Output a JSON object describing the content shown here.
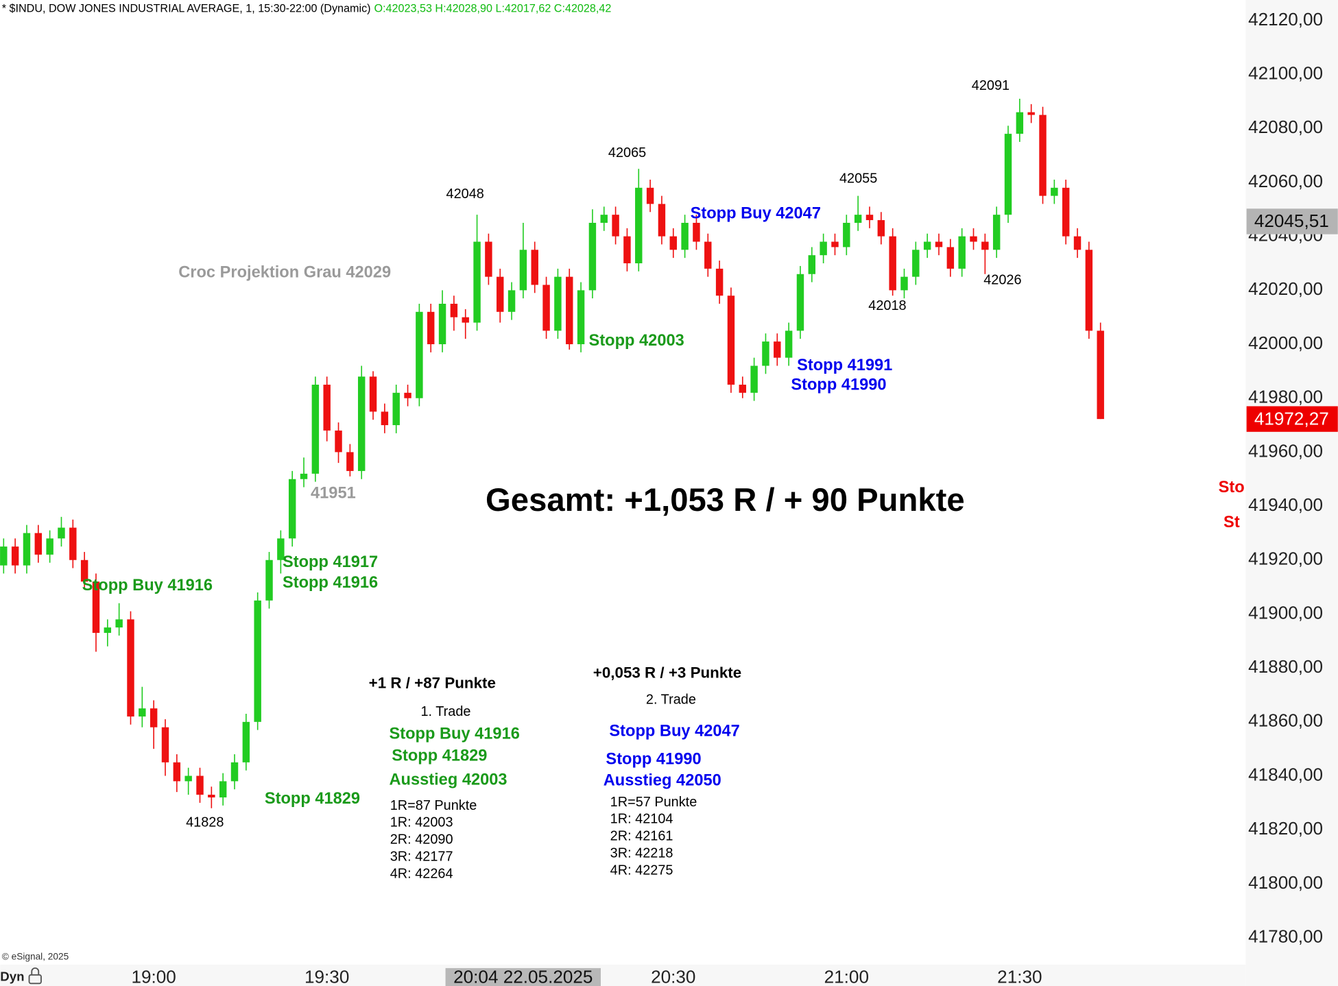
{
  "chart_data": {
    "type": "candlestick",
    "title": "* $INDU, DOW JONES INDUSTRIAL AVERAGE, 1, 15:30-22:00 (Dynamic)",
    "subtitle": "O:42023,53 H:42028,90 L:42017,62 C:42028,42",
    "x": [
      "18:34",
      "18:36",
      "18:38",
      "18:40",
      "18:42",
      "18:44",
      "18:46",
      "18:48",
      "18:50",
      "18:52",
      "18:54",
      "18:56",
      "18:58",
      "19:00",
      "19:02",
      "19:04",
      "19:06",
      "19:08",
      "19:10",
      "19:12",
      "19:14",
      "19:16",
      "19:18",
      "19:20",
      "19:22",
      "19:24",
      "19:26",
      "19:28",
      "19:30",
      "19:32",
      "19:34",
      "19:36",
      "19:38",
      "19:40",
      "19:42",
      "19:44",
      "19:46",
      "19:48",
      "19:50",
      "19:52",
      "19:54",
      "19:56",
      "19:58",
      "20:00",
      "20:02",
      "20:04",
      "20:06",
      "20:08",
      "20:10",
      "20:12",
      "20:14",
      "20:16",
      "20:18",
      "20:20",
      "20:22",
      "20:24",
      "20:26",
      "20:28",
      "20:30",
      "20:32",
      "20:34",
      "20:36",
      "20:38",
      "20:40",
      "20:42",
      "20:44",
      "20:46",
      "20:48",
      "20:50",
      "20:52",
      "20:54",
      "20:56",
      "20:58",
      "21:00",
      "21:02",
      "21:04",
      "21:06",
      "21:08",
      "21:10",
      "21:12",
      "21:14",
      "21:16",
      "21:18",
      "21:20",
      "21:22",
      "21:24",
      "21:26",
      "21:28",
      "21:30",
      "21:32",
      "21:34",
      "21:36",
      "21:38",
      "21:40",
      "21:42",
      "21:44"
    ],
    "open": [
      41918,
      41925,
      41918,
      41930,
      41922,
      41928,
      41932,
      41920,
      41912,
      41893,
      41895,
      41898,
      41862,
      41865,
      41858,
      41845,
      41838,
      41840,
      41833,
      41832,
      41838,
      41845,
      41860,
      41905,
      41920,
      41928,
      41950,
      41952,
      41985,
      41968,
      41960,
      41953,
      41988,
      41975,
      41970,
      41982,
      41980,
      42012,
      42000,
      42015,
      42010,
      42008,
      42038,
      42025,
      42012,
      42020,
      42035,
      42022,
      42005,
      42025,
      42000,
      42020,
      42045,
      42048,
      42040,
      42030,
      42058,
      42052,
      42040,
      42035,
      42045,
      42038,
      42028,
      42018,
      41985,
      41982,
      41992,
      42001,
      41995,
      42005,
      42026,
      42033,
      42038,
      42036,
      42045,
      42048,
      42046,
      42040,
      42020,
      42025,
      42035,
      42038,
      42036,
      42028,
      42040,
      42038,
      42035,
      42048,
      42078,
      42086,
      42085,
      42055,
      42058,
      42040,
      42035,
      42005
    ],
    "high": [
      41928,
      41928,
      41933,
      41933,
      41931,
      41936,
      41935,
      41923,
      41915,
      41898,
      41904,
      41901,
      41873,
      41868,
      41861,
      41848,
      41843,
      41843,
      41836,
      41841,
      41848,
      41863,
      41908,
      41923,
      41931,
      41953,
      41958,
      41988,
      41988,
      41971,
      41963,
      41992,
      41990,
      41978,
      41985,
      41985,
      42015,
      42015,
      42020,
      42018,
      42013,
      42048,
      42041,
      42028,
      42023,
      42045,
      42038,
      42025,
      42028,
      42028,
      42023,
      42050,
      42051,
      42051,
      42043,
      42065,
      42061,
      42055,
      42043,
      42048,
      42048,
      42041,
      42031,
      42021,
      41988,
      41995,
      42004,
      42004,
      42008,
      42029,
      42036,
      42041,
      42041,
      42048,
      42055,
      42051,
      42049,
      42043,
      42028,
      42038,
      42041,
      42041,
      42039,
      42043,
      42043,
      42041,
      42051,
      42081,
      42091,
      42089,
      42088,
      42061,
      42061,
      42043,
      42038,
      42008
    ],
    "low": [
      41915,
      41915,
      41915,
      41919,
      41919,
      41925,
      41917,
      41909,
      41886,
      41888,
      41892,
      41859,
      41858,
      41850,
      41840,
      41834,
      41833,
      41830,
      41828,
      41829,
      41835,
      41842,
      41857,
      41902,
      41915,
      41925,
      41947,
      41949,
      41964,
      41956,
      41951,
      41950,
      41972,
      41967,
      41967,
      41977,
      41977,
      41997,
      41997,
      42005,
      42002,
      42005,
      42022,
      42008,
      42009,
      42017,
      42019,
      42002,
      42002,
      41998,
      41997,
      42017,
      42042,
      42037,
      42027,
      42027,
      42049,
      42037,
      42032,
      42032,
      42035,
      42025,
      42015,
      41982,
      41980,
      41979,
      41989,
      41992,
      41992,
      42002,
      42023,
      42030,
      42033,
      42033,
      42042,
      42043,
      42037,
      42018,
      42017,
      42022,
      42032,
      42033,
      42025,
      42025,
      42035,
      42026,
      42032,
      42045,
      42075,
      42082,
      42052,
      42052,
      42037,
      42032,
      42002,
      41972.27
    ],
    "close": [
      41925,
      41918,
      41930,
      41922,
      41928,
      41932,
      41920,
      41912,
      41893,
      41895,
      41898,
      41862,
      41865,
      41858,
      41845,
      41838,
      41840,
      41833,
      41832,
      41838,
      41845,
      41860,
      41905,
      41920,
      41928,
      41950,
      41952,
      41985,
      41968,
      41960,
      41953,
      41988,
      41975,
      41970,
      41982,
      41980,
      42012,
      42000,
      42015,
      42010,
      42008,
      42038,
      42025,
      42012,
      42020,
      42035,
      42022,
      42005,
      42025,
      42000,
      42020,
      42045,
      42048,
      42040,
      42030,
      42058,
      42052,
      42040,
      42035,
      42045,
      42038,
      42028,
      42018,
      41985,
      41982,
      41992,
      42001,
      41995,
      42005,
      42026,
      42033,
      42038,
      42036,
      42045,
      42048,
      42046,
      42040,
      42020,
      42025,
      42035,
      42038,
      42036,
      42028,
      42040,
      42038,
      42035,
      42048,
      42078,
      42086,
      42085,
      42055,
      42058,
      42040,
      42035,
      42005,
      41972.27
    ],
    "up_color": "#22cc22",
    "down_color": "#ee1111",
    "xlim": [
      "18:33:24",
      "22:09:09"
    ],
    "xticks": [
      "19:00",
      "19:30",
      "20:30",
      "21:00",
      "21:30"
    ],
    "ylim": [
      41770,
      42127.6
    ],
    "yticks": [
      {
        "value": 41780,
        "label": "41780,00"
      },
      {
        "value": 41800,
        "label": "41800,00"
      },
      {
        "value": 41820,
        "label": "41820,00"
      },
      {
        "value": 41840,
        "label": "41840,00"
      },
      {
        "value": 41860,
        "label": "41860,00"
      },
      {
        "value": 41880,
        "label": "41880,00"
      },
      {
        "value": 41900,
        "label": "41900,00"
      },
      {
        "value": 41920,
        "label": "41920,00"
      },
      {
        "value": 41940,
        "label": "41940,00"
      },
      {
        "value": 41960,
        "label": "41960,00"
      },
      {
        "value": 41980,
        "label": "41980,00"
      },
      {
        "value": 42000,
        "label": "42000,00"
      },
      {
        "value": 42020,
        "label": "42020,00"
      },
      {
        "value": 42040,
        "label": "42040,00"
      },
      {
        "value": 42060,
        "label": "42060,00"
      },
      {
        "value": 42080,
        "label": "42080,00"
      },
      {
        "value": 42100,
        "label": "42100,00"
      },
      {
        "value": 42120,
        "label": "42120,00"
      }
    ],
    "price_markers": [
      {
        "value": 42045.51,
        "label": "42045,51",
        "color": "#b4b4b4"
      },
      {
        "value": 41972.27,
        "label": "41972,27",
        "color": "#ee0000"
      }
    ],
    "crosshair_label": "20:04 22.05.2025",
    "copyright": "© eSignal, 2025",
    "mode": "Dyn",
    "annotations": [
      "Croc Projektion Grau 42029",
      "42048",
      "42065",
      "Stopp Buy 42047",
      "42055",
      "42091",
      "42026",
      "42018",
      "Stopp 42003",
      "Stopp 41991",
      "Stopp 41990",
      "41951",
      "Gesamt: +1,053 R / + 90 Punkte",
      "Stopp 41917",
      "Stopp 41916",
      "Stopp Buy 41916",
      "+1 R / +87 Punkte",
      "1. Trade",
      "Stopp Buy 41916",
      "Stopp 41829",
      "Ausstieg 42003",
      "Stopp 41829",
      "41828",
      "1R=87 Punkte",
      "1R: 42003",
      "2R: 42090",
      "3R: 42177",
      "4R: 42264",
      "+0,053 R / +3 Punkte",
      "2. Trade",
      "Stopp Buy 42047",
      "Stopp 41990",
      "Ausstieg 42050",
      "1R=57 Punkte",
      "1R: 42104",
      "2R: 42161",
      "3R: 42218",
      "4R: 42275",
      "Sto",
      "St"
    ]
  }
}
